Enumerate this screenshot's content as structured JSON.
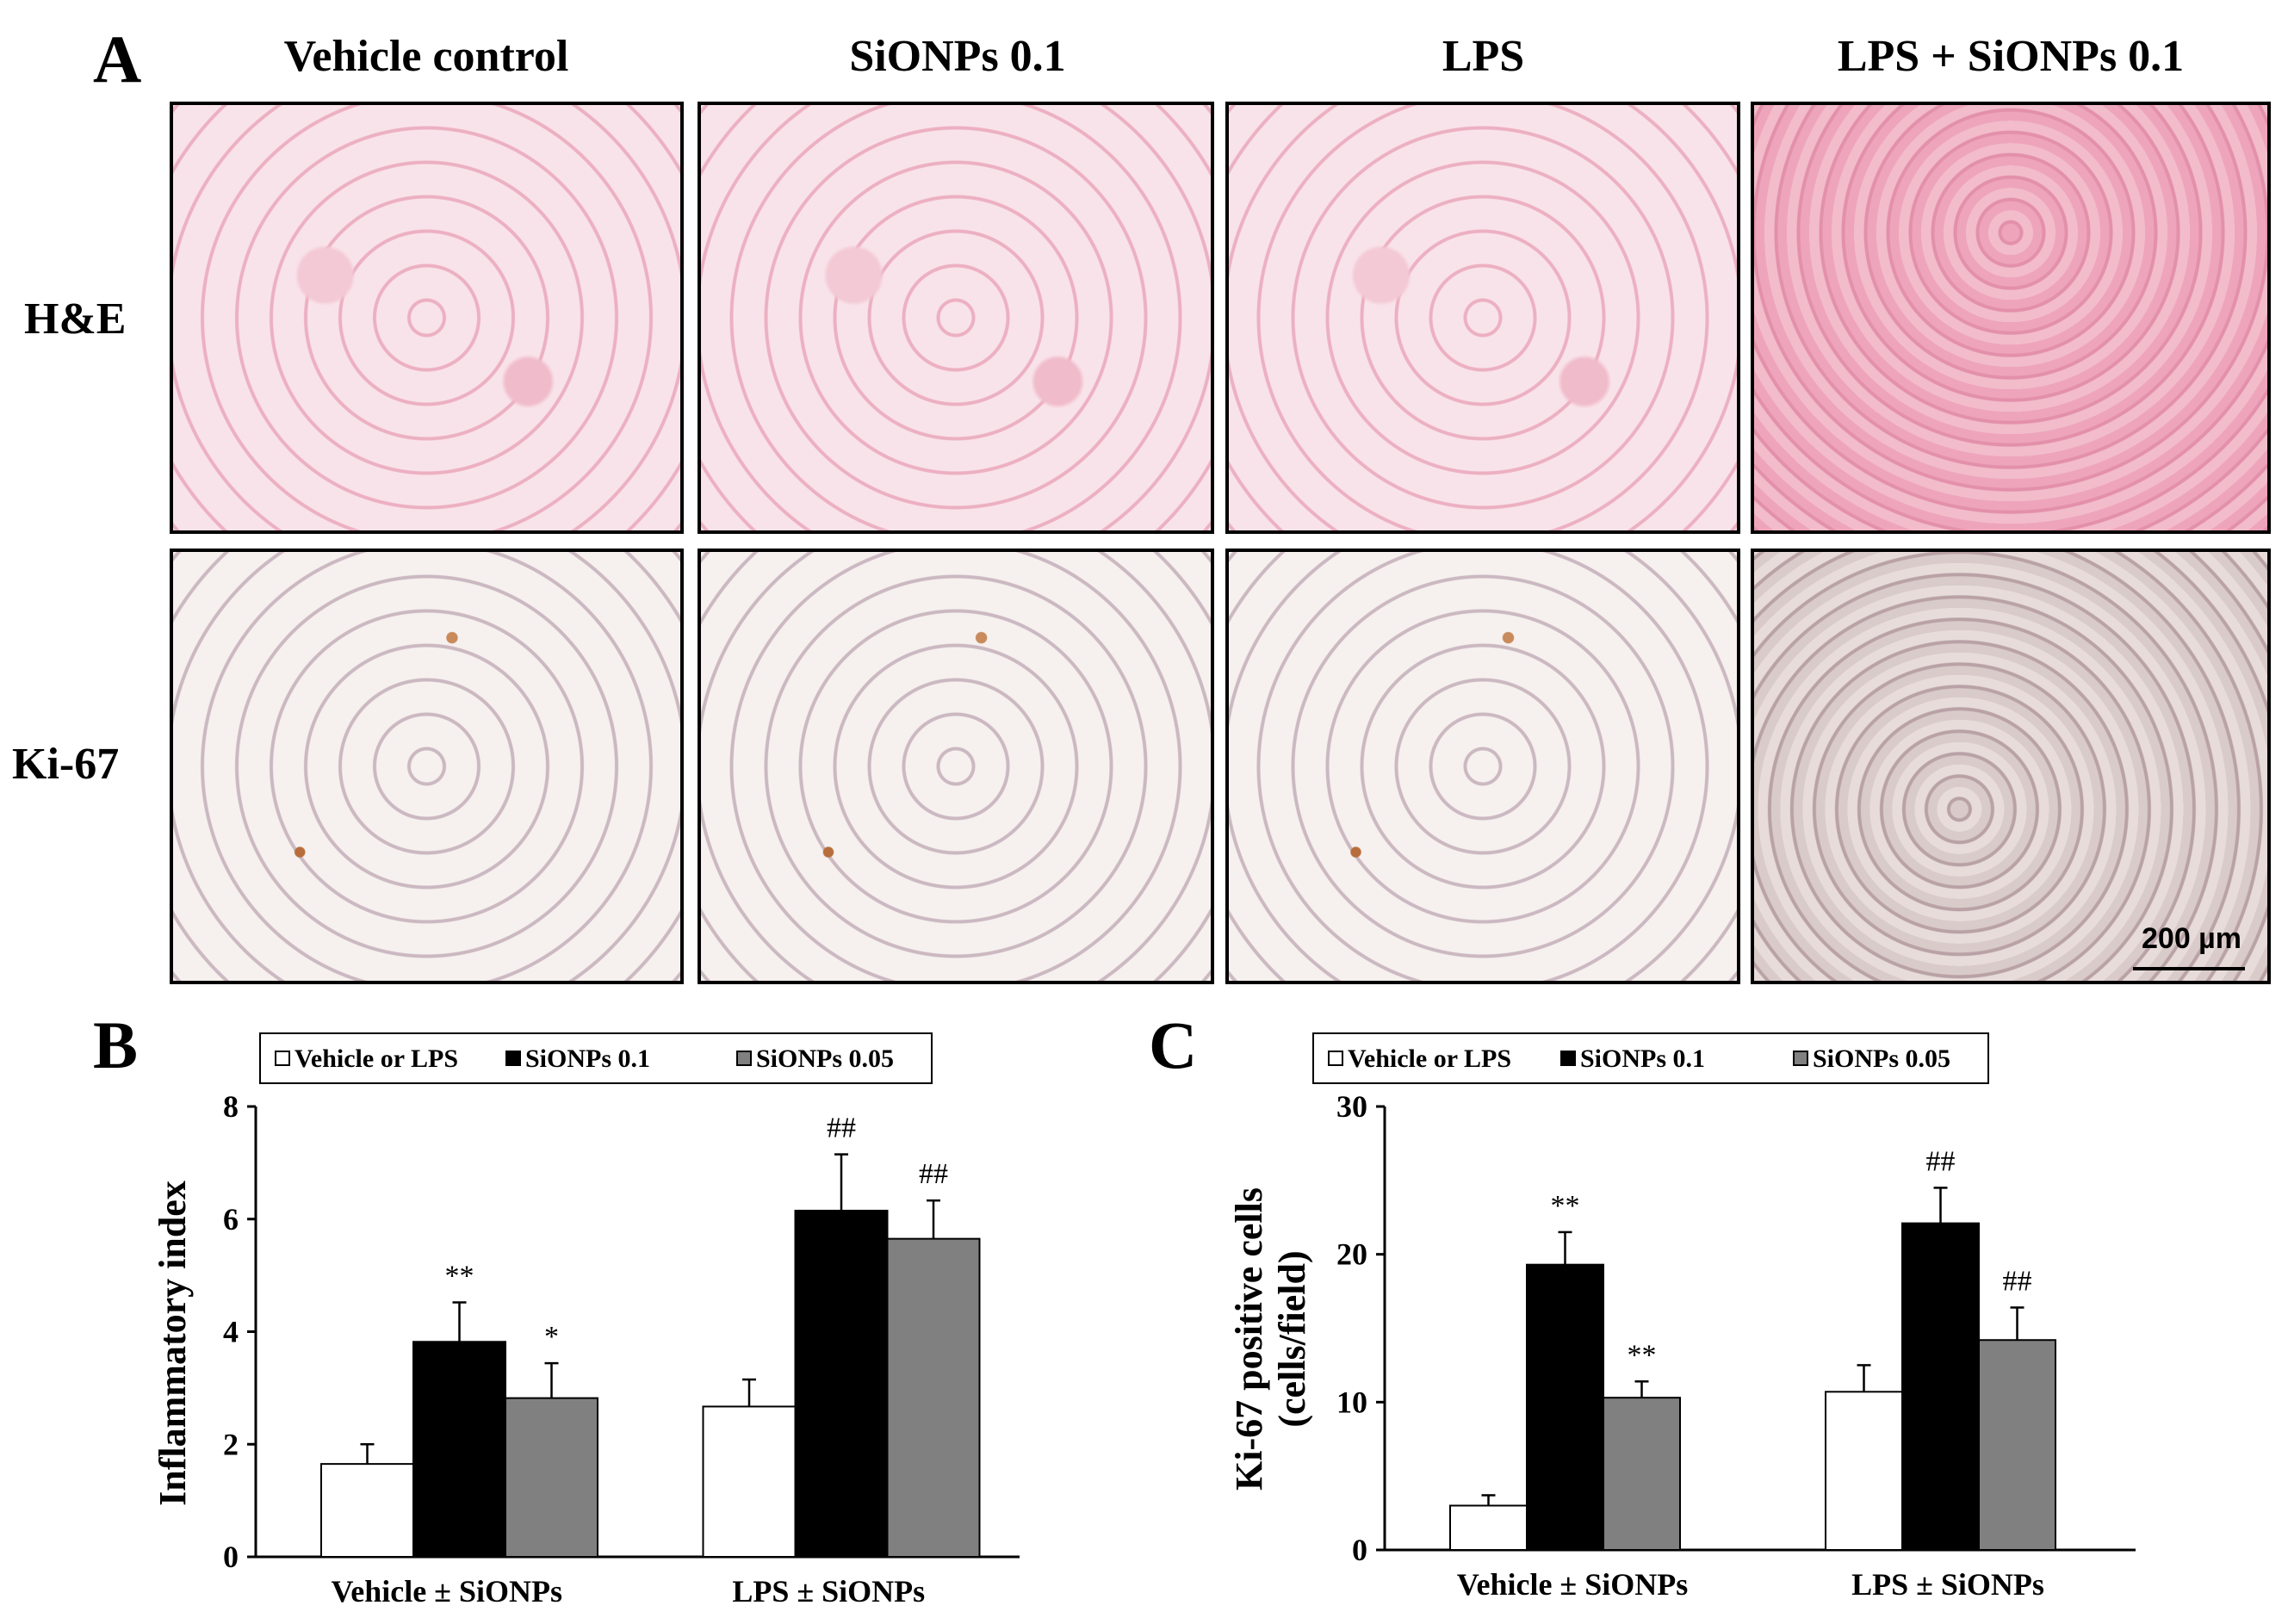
{
  "panel_a": {
    "letter": "A",
    "columns": [
      "Vehicle control",
      "SiONPs 0.1",
      "LPS",
      "LPS + SiONPs 0.1"
    ],
    "rows": [
      "H&E",
      "Ki-67"
    ],
    "scale_bar": "200 µm"
  },
  "chart_data": [
    {
      "type": "bar",
      "panel": "B",
      "ylabel": "Inflammatory index",
      "ylim": [
        0,
        8
      ],
      "yticks": [
        0,
        2,
        4,
        6,
        8
      ],
      "categories": [
        "Vehicle ± SiONPs",
        "LPS ± SiONPs"
      ],
      "legend": {
        "placement": "top",
        "items": [
          "Vehicle or LPS",
          "SiONPs 0.1",
          "SiONPs 0.05"
        ]
      },
      "series": [
        {
          "name": "Vehicle or LPS",
          "color": "#ffffff",
          "values": [
            1.65,
            2.67
          ],
          "errors": [
            0.35,
            0.48
          ],
          "labels": [
            "",
            ""
          ]
        },
        {
          "name": "SiONPs 0.1",
          "color": "#000000",
          "values": [
            3.82,
            6.15
          ],
          "errors": [
            0.7,
            1.0
          ],
          "labels": [
            "**",
            "##"
          ]
        },
        {
          "name": "SiONPs 0.05",
          "color": "#808080",
          "values": [
            2.82,
            5.65
          ],
          "errors": [
            0.62,
            0.68
          ],
          "labels": [
            "*",
            "##"
          ]
        }
      ]
    },
    {
      "type": "bar",
      "panel": "C",
      "ylabel": "Ki-67 positive cells (cells/field)",
      "ylabel_lines": [
        "Ki-67 positive cells",
        "(cells/field)"
      ],
      "ylim": [
        0,
        30
      ],
      "yticks": [
        0,
        10,
        20,
        30
      ],
      "categories": [
        "Vehicle ± SiONPs",
        "LPS ± SiONPs"
      ],
      "legend": {
        "placement": "top",
        "items": [
          "Vehicle or LPS",
          "SiONPs 0.1",
          "SiONPs 0.05"
        ]
      },
      "series": [
        {
          "name": "Vehicle or LPS",
          "color": "#ffffff",
          "values": [
            3.0,
            10.7
          ],
          "errors": [
            0.7,
            1.8
          ],
          "labels": [
            "",
            ""
          ]
        },
        {
          "name": "SiONPs 0.1",
          "color": "#000000",
          "values": [
            19.3,
            22.1
          ],
          "errors": [
            2.2,
            2.4
          ],
          "labels": [
            "**",
            "##"
          ]
        },
        {
          "name": "SiONPs 0.05",
          "color": "#808080",
          "values": [
            10.3,
            14.2
          ],
          "errors": [
            1.1,
            2.2
          ],
          "labels": [
            "**",
            "##"
          ]
        }
      ]
    }
  ]
}
